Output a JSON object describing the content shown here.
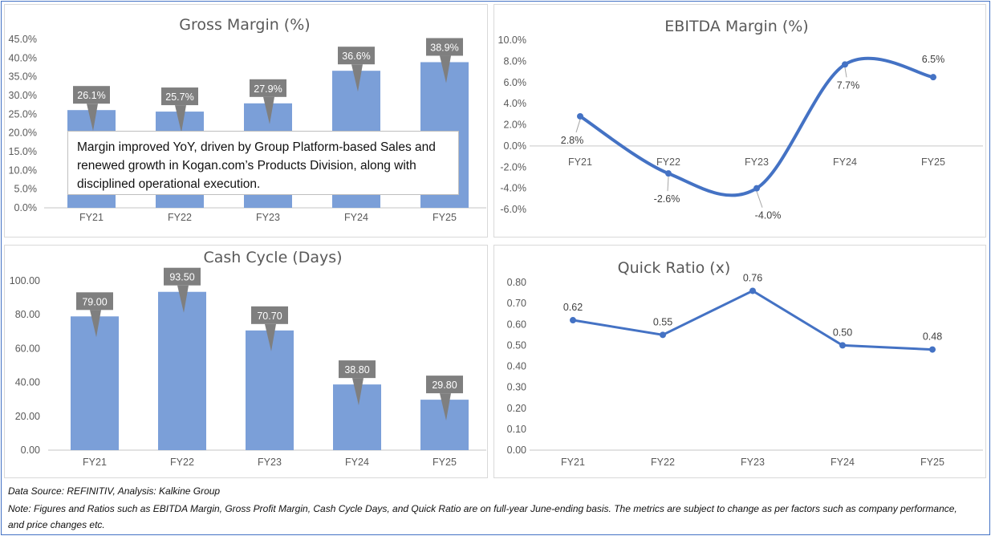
{
  "chart_data": [
    {
      "id": "gross",
      "type": "bar",
      "title": "Gross Margin (%)",
      "categories": [
        "FY21",
        "FY22",
        "FY23",
        "FY24",
        "FY25"
      ],
      "values": [
        26.1,
        25.7,
        27.9,
        36.6,
        38.9
      ],
      "data_labels": [
        "26.1%",
        "25.7%",
        "27.9%",
        "36.6%",
        "38.9%"
      ],
      "ylim": [
        0,
        45
      ],
      "yticks": [
        "0.0%",
        "5.0%",
        "10.0%",
        "15.0%",
        "20.0%",
        "25.0%",
        "30.0%",
        "35.0%",
        "40.0%",
        "45.0%"
      ],
      "color": "#7b9fd8",
      "label_box_color": "#7f7f7f",
      "grid": false,
      "annotation": "Margin improved YoY, driven by Group Platform-based Sales and renewed growth in Kogan.com’s Products Division, along with disciplined operational execution."
    },
    {
      "id": "ebitda",
      "type": "line",
      "smooth": true,
      "title": "EBITDA Margin (%)",
      "categories": [
        "FY21",
        "FY22",
        "FY23",
        "FY24",
        "FY25"
      ],
      "values": [
        2.8,
        -2.6,
        -4.0,
        7.7,
        6.5
      ],
      "data_labels": [
        "2.8%",
        "-2.6%",
        "-4.0%",
        "7.7%",
        "6.5%"
      ],
      "ylim": [
        -6,
        10
      ],
      "yticks": [
        "-6.0%",
        "-4.0%",
        "-2.0%",
        "0.0%",
        "2.0%",
        "4.0%",
        "6.0%",
        "8.0%",
        "10.0%"
      ],
      "color": "#4472c4",
      "grid": false
    },
    {
      "id": "cash",
      "type": "bar",
      "title": "Cash Cycle (Days)",
      "categories": [
        "FY21",
        "FY22",
        "FY23",
        "FY24",
        "FY25"
      ],
      "values": [
        79.0,
        93.5,
        70.7,
        38.8,
        29.8
      ],
      "data_labels": [
        "79.00",
        "93.50",
        "70.70",
        "38.80",
        "29.80"
      ],
      "ylim": [
        0,
        100
      ],
      "yticks": [
        "0.00",
        "20.00",
        "40.00",
        "60.00",
        "80.00",
        "100.00"
      ],
      "color": "#7b9fd8",
      "label_box_color": "#7f7f7f",
      "grid": false
    },
    {
      "id": "quick",
      "type": "line",
      "smooth": false,
      "title": "Quick Ratio (x)",
      "categories": [
        "FY21",
        "FY22",
        "FY23",
        "FY24",
        "FY25"
      ],
      "values": [
        0.62,
        0.55,
        0.76,
        0.5,
        0.48
      ],
      "data_labels": [
        "0.62",
        "0.55",
        "0.76",
        "0.50",
        "0.48"
      ],
      "ylim": [
        0,
        0.8
      ],
      "yticks": [
        "0.00",
        "0.10",
        "0.20",
        "0.30",
        "0.40",
        "0.50",
        "0.60",
        "0.70",
        "0.80"
      ],
      "color": "#4472c4",
      "grid": false
    }
  ],
  "footer": {
    "source": "Data Source: REFINITIV, Analysis: Kalkine Group",
    "note": "Note: Figures and Ratios such as EBITDA Margin, Gross Profit Margin, Cash Cycle Days, and Quick Ratio are on full-year June-ending basis. The metrics are subject to change as per factors such as company performance, and price changes etc."
  }
}
